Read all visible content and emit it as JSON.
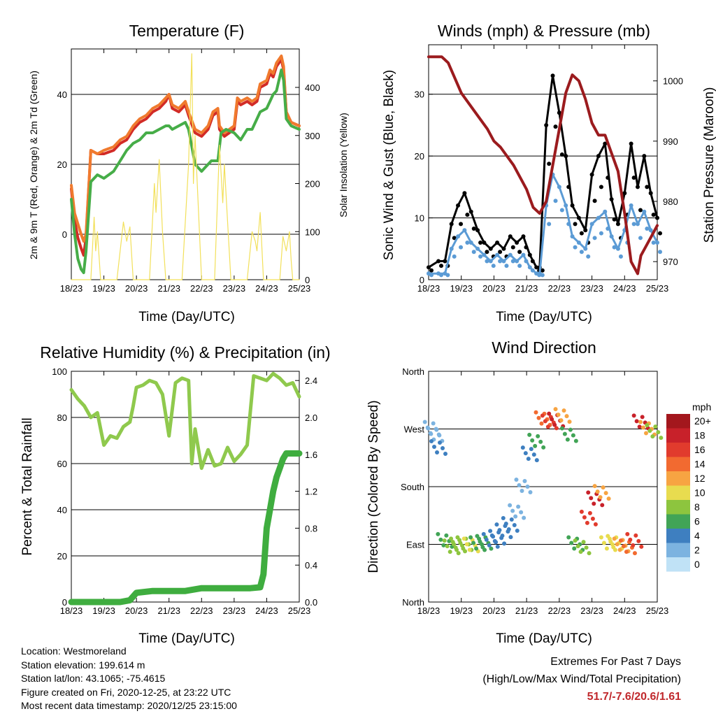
{
  "panels": {
    "temperature": {
      "title": "Temperature (F)",
      "ylabel_left": "2m & 9m T (Red, Orange) & 2m Td (Green)",
      "ylabel_right": "Solar Insolation (Yellow)",
      "xlabel": "Time (Day/UTC)"
    },
    "winds": {
      "title": "Winds (mph) & Pressure (mb)",
      "ylabel_left": "Sonic Wind & Gust (Blue, Black)",
      "ylabel_right": "Station Pressure (Maroon)",
      "xlabel": "Time (Day/UTC)"
    },
    "humidity": {
      "title": "Relative Humidity (%) & Precipitation (in)",
      "ylabel_left": "Percent & Total Rainfall",
      "xlabel": "Time (Day/UTC)"
    },
    "direction": {
      "title": "Wind Direction",
      "ylabel_left": "Direction (Colored By Speed)",
      "xlabel": "Time (Day/UTC)",
      "legend_title": "mph",
      "legend_labels": [
        "20+",
        "18",
        "16",
        "14",
        "12",
        "10",
        "8",
        "6",
        "4",
        "2",
        "0"
      ],
      "legend_colors": [
        "#a3171d",
        "#c8212a",
        "#e13b2d",
        "#f26a30",
        "#f7a442",
        "#e8dc4f",
        "#8dc53e",
        "#41a456",
        "#3e7fc0",
        "#7cb3e0",
        "#c0e2f6"
      ]
    }
  },
  "chart_data": [
    {
      "type": "line",
      "title": "Temperature (F)",
      "xlabel": "Time (Day/UTC)",
      "ylabel": "2m & 9m T (Red, Orange) & 2m Td (Green)",
      "y2label": "Solar Insolation (Yellow)",
      "x_ticks": [
        "18/23",
        "19/23",
        "20/23",
        "21/23",
        "22/23",
        "23/23",
        "24/23",
        "25/23"
      ],
      "x_range": [
        0,
        7
      ],
      "ylim": [
        -13,
        53
      ],
      "y_ticks": [
        0,
        20,
        40
      ],
      "y2lim": [
        0,
        480
      ],
      "y2_ticks": [
        0,
        100,
        200,
        300,
        400
      ],
      "grid": true,
      "series": [
        {
          "color": "#d22b26",
          "x": [
            0,
            0.1,
            0.2,
            0.3,
            0.38,
            0.45,
            0.6,
            0.8,
            1.0,
            1.3,
            1.5,
            1.7,
            1.9,
            2.1,
            2.3,
            2.5,
            2.7,
            2.9,
            3.0,
            3.1,
            3.3,
            3.5,
            3.6,
            3.8,
            4.0,
            4.2,
            4.35,
            4.5,
            4.55,
            4.7,
            5.0,
            5.1,
            5.2,
            5.4,
            5.55,
            5.7,
            5.75,
            5.8,
            6.0,
            6.1,
            6.2,
            6.3,
            6.45,
            6.52,
            6.6,
            6.75,
            7.0
          ],
          "values": [
            13,
            4,
            -1,
            -4,
            -6,
            -1,
            24,
            23,
            23,
            24,
            26,
            27,
            30,
            32,
            33,
            35,
            36,
            38,
            40,
            36,
            35,
            37,
            34,
            29,
            28,
            30,
            34,
            35,
            30,
            28,
            30,
            38,
            37,
            38,
            37,
            38,
            40,
            42,
            43,
            46,
            45,
            48,
            50,
            47,
            35,
            32,
            31
          ]
        },
        {
          "color": "#f07a2e",
          "x": [
            0,
            0.1,
            0.2,
            0.3,
            0.38,
            0.45,
            0.6,
            0.8,
            1.0,
            1.3,
            1.5,
            1.7,
            1.9,
            2.1,
            2.3,
            2.5,
            2.7,
            2.9,
            3.0,
            3.1,
            3.3,
            3.5,
            3.6,
            3.8,
            4.0,
            4.2,
            4.35,
            4.5,
            4.55,
            4.7,
            5.0,
            5.1,
            5.2,
            5.4,
            5.55,
            5.7,
            5.75,
            5.8,
            6.0,
            6.1,
            6.2,
            6.3,
            6.45,
            6.52,
            6.6,
            6.75,
            7.0
          ],
          "values": [
            14,
            6,
            3,
            0,
            -2,
            0,
            24,
            23,
            24,
            25,
            27,
            28,
            31,
            33,
            34,
            36,
            37,
            39,
            40,
            37,
            36,
            38,
            35,
            30,
            29,
            31,
            35,
            36,
            31,
            29,
            31,
            39,
            38,
            39,
            38,
            39,
            41,
            43,
            44,
            47,
            46,
            49,
            51,
            48,
            35,
            32,
            31
          ]
        },
        {
          "color": "#46ad48",
          "x": [
            0,
            0.1,
            0.2,
            0.3,
            0.38,
            0.45,
            0.6,
            0.8,
            1.0,
            1.3,
            1.5,
            1.7,
            1.9,
            2.1,
            2.3,
            2.5,
            2.7,
            2.9,
            3.0,
            3.1,
            3.3,
            3.5,
            3.6,
            3.8,
            4.0,
            4.1,
            4.3,
            4.5,
            4.6,
            4.75,
            5.0,
            5.2,
            5.4,
            5.55,
            5.7,
            5.8,
            6.0,
            6.1,
            6.2,
            6.3,
            6.45,
            6.52,
            6.6,
            6.75,
            7.0
          ],
          "values": [
            10,
            0,
            -7,
            -10,
            -11,
            -5,
            15,
            17,
            16,
            18,
            21,
            24,
            26,
            27,
            29,
            29,
            30,
            31,
            31,
            30,
            31,
            32,
            30,
            20,
            18,
            19,
            21,
            21,
            29,
            30,
            29,
            27,
            30,
            30,
            33,
            35,
            36,
            38,
            40,
            41,
            47,
            44,
            33,
            31,
            30
          ]
        },
        {
          "color": "#f2e05a",
          "axis": "y2",
          "x": [
            0,
            0.6,
            0.7,
            0.75,
            0.8,
            0.9,
            1.4,
            1.6,
            1.7,
            1.8,
            1.9,
            2.4,
            2.55,
            2.6,
            2.7,
            2.8,
            2.9,
            3.4,
            3.6,
            3.7,
            3.75,
            3.8,
            4.0,
            4.4,
            4.55,
            4.65,
            4.7,
            4.8,
            4.9,
            5.4,
            5.55,
            5.65,
            5.7,
            5.8,
            5.9,
            6.4,
            6.5,
            6.6,
            6.7,
            6.75,
            6.8,
            7.0
          ],
          "values": [
            0,
            0,
            130,
            60,
            100,
            0,
            0,
            120,
            80,
            110,
            0,
            0,
            200,
            140,
            250,
            100,
            0,
            0,
            240,
            470,
            200,
            300,
            0,
            0,
            280,
            160,
            240,
            120,
            0,
            0,
            100,
            80,
            60,
            140,
            0,
            0,
            90,
            60,
            100,
            40,
            0,
            0
          ]
        }
      ]
    },
    {
      "type": "scatter",
      "title": "Winds (mph) & Pressure (mb)",
      "xlabel": "Time (Day/UTC)",
      "ylabel": "Sonic Wind & Gust (Blue, Black)",
      "y2label": "Station Pressure (Maroon)",
      "x_ticks": [
        "18/23",
        "19/23",
        "20/23",
        "21/23",
        "22/23",
        "23/23",
        "24/23",
        "25/23"
      ],
      "x_range": [
        0,
        7
      ],
      "ylim": [
        0,
        38
      ],
      "y_ticks": [
        0,
        10,
        20,
        30
      ],
      "y2lim": [
        967,
        1006
      ],
      "y2_ticks": [
        970,
        980,
        990,
        1000
      ],
      "grid": true,
      "series": [
        {
          "name": "Gust",
          "color": "#000000",
          "x": [
            0,
            0.3,
            0.5,
            0.7,
            0.9,
            1.1,
            1.3,
            1.5,
            1.7,
            1.9,
            2.1,
            2.3,
            2.5,
            2.7,
            2.9,
            3.1,
            3.3,
            3.4,
            3.6,
            3.8,
            4.0,
            4.2,
            4.4,
            4.6,
            4.8,
            5.0,
            5.2,
            5.4,
            5.6,
            5.8,
            6.0,
            6.2,
            6.4,
            6.6,
            6.8,
            7.0
          ],
          "values": [
            2,
            3,
            3,
            9,
            12,
            14,
            11,
            8,
            6,
            5,
            6,
            5,
            7,
            6,
            7,
            4,
            2,
            2,
            25,
            33,
            27,
            20,
            12,
            10,
            8,
            17,
            20,
            22,
            13,
            9,
            14,
            22,
            15,
            20,
            14,
            10
          ]
        },
        {
          "name": "Wind",
          "color": "#5b9bd5",
          "x": [
            0,
            0.3,
            0.5,
            0.7,
            0.9,
            1.1,
            1.3,
            1.5,
            1.7,
            1.9,
            2.1,
            2.3,
            2.5,
            2.7,
            2.9,
            3.1,
            3.3,
            3.4,
            3.6,
            3.8,
            4.0,
            4.2,
            4.4,
            4.6,
            4.8,
            5.0,
            5.2,
            5.4,
            5.6,
            5.8,
            6.0,
            6.2,
            6.4,
            6.6,
            6.8,
            7.0
          ],
          "values": [
            1,
            1,
            1,
            5,
            7,
            8,
            6,
            5,
            4,
            3,
            4,
            3,
            4,
            3,
            4,
            2,
            1,
            1,
            12,
            17,
            15,
            12,
            7,
            6,
            5,
            9,
            10,
            11,
            7,
            5,
            8,
            12,
            9,
            11,
            8,
            6
          ]
        },
        {
          "name": "Pressure",
          "color": "#9b1b1e",
          "axis": "y2",
          "x": [
            0,
            0.4,
            0.6,
            1.0,
            1.4,
            1.8,
            2.0,
            2.2,
            2.6,
            3.0,
            3.2,
            3.4,
            3.6,
            3.8,
            4.0,
            4.2,
            4.4,
            4.6,
            4.8,
            5.0,
            5.2,
            5.4,
            5.6,
            5.8,
            6.0,
            6.1,
            6.2,
            6.4,
            6.5,
            6.6,
            6.8,
            7.0
          ],
          "values": [
            1004,
            1004,
            1003,
            998,
            995,
            992,
            990,
            989,
            986,
            982,
            979,
            978,
            980,
            986,
            992,
            998,
            1001,
            1000,
            997,
            993,
            991,
            991,
            988,
            985,
            978,
            974,
            970,
            968,
            971,
            972,
            974,
            976
          ]
        }
      ]
    },
    {
      "type": "line",
      "title": "Relative Humidity (%) & Precipitation (in)",
      "xlabel": "Time (Day/UTC)",
      "ylabel": "Percent & Total Rainfall",
      "x_ticks": [
        "18/23",
        "19/23",
        "20/23",
        "21/23",
        "22/23",
        "23/23",
        "24/23",
        "25/23"
      ],
      "x_range": [
        0,
        7
      ],
      "ylim": [
        0,
        100
      ],
      "y_ticks": [
        0,
        20,
        40,
        60,
        80,
        100
      ],
      "y2lim": [
        0,
        2.5
      ],
      "y2_ticks": [
        "0.0",
        "0.4",
        "0.8",
        "1.2",
        "1.6",
        "2.0",
        "2.4"
      ],
      "grid": true,
      "series": [
        {
          "name": "RH",
          "color": "#8fc94d",
          "x": [
            0,
            0.2,
            0.4,
            0.6,
            0.8,
            0.9,
            1.0,
            1.2,
            1.4,
            1.6,
            1.8,
            1.9,
            2.0,
            2.2,
            2.4,
            2.6,
            2.8,
            3.0,
            3.2,
            3.4,
            3.6,
            3.7,
            3.8,
            4.0,
            4.2,
            4.4,
            4.6,
            4.8,
            5.0,
            5.2,
            5.4,
            5.6,
            5.8,
            6.0,
            6.2,
            6.4,
            6.6,
            6.8,
            7.0
          ],
          "values": [
            92,
            88,
            85,
            80,
            82,
            75,
            68,
            72,
            71,
            76,
            78,
            85,
            93,
            94,
            96,
            95,
            90,
            72,
            95,
            97,
            96,
            60,
            75,
            58,
            66,
            59,
            60,
            67,
            61,
            64,
            68,
            98,
            97,
            96,
            99,
            97,
            94,
            95,
            89
          ]
        },
        {
          "name": "Precipitation",
          "color": "#3fad3f",
          "axis": "y2",
          "x": [
            0,
            0.5,
            1.0,
            1.5,
            1.8,
            2.0,
            2.5,
            3.0,
            3.5,
            4.0,
            4.5,
            5.0,
            5.5,
            5.8,
            5.9,
            6.0,
            6.1,
            6.2,
            6.3,
            6.4,
            6.5,
            6.6,
            7.0
          ],
          "values": [
            0,
            0,
            0,
            0,
            0.02,
            0.1,
            0.12,
            0.12,
            0.12,
            0.15,
            0.15,
            0.15,
            0.15,
            0.16,
            0.3,
            0.8,
            1.0,
            1.2,
            1.35,
            1.45,
            1.55,
            1.61,
            1.61
          ]
        }
      ]
    },
    {
      "type": "scatter",
      "title": "Wind Direction",
      "xlabel": "Time (Day/UTC)",
      "ylabel": "Direction (Colored By Speed)",
      "x_ticks": [
        "18/23",
        "19/23",
        "20/23",
        "21/23",
        "22/23",
        "23/23",
        "24/23",
        "25/23"
      ],
      "x_range": [
        0,
        7
      ],
      "y_ticks": [
        "North",
        "East",
        "South",
        "West",
        "North"
      ],
      "ylim": [
        0,
        360
      ],
      "color_scale": {
        "title": "mph",
        "labels": [
          "0",
          "2",
          "4",
          "6",
          "8",
          "10",
          "12",
          "14",
          "16",
          "18",
          "20+"
        ]
      },
      "series": [
        {
          "name": "Direction",
          "x": [
            0.1,
            0.2,
            0.3,
            0.5,
            0.7,
            0.9,
            1.1,
            1.3,
            1.5,
            1.7,
            1.9,
            2.1,
            2.3,
            2.5,
            2.7,
            2.9,
            3.1,
            3.3,
            3.5,
            3.7,
            3.9,
            4.1,
            4.3,
            4.5,
            4.7,
            4.9,
            5.1,
            5.3,
            5.5,
            5.7,
            5.9,
            6.1,
            6.3,
            6.5,
            6.7,
            6.9
          ],
          "values": [
            270,
            260,
            240,
            95,
            85,
            88,
            90,
            88,
            90,
            92,
            95,
            100,
            110,
            120,
            140,
            180,
            230,
            250,
            285,
            280,
            283,
            290,
            260,
            90,
            85,
            130,
            160,
            170,
            90,
            92,
            88,
            85,
            95,
            280,
            270,
            265
          ],
          "speed": [
            1,
            2,
            3,
            5,
            7,
            8,
            7,
            9,
            6,
            5,
            4,
            3,
            3,
            4,
            2,
            2,
            3,
            5,
            14,
            16,
            18,
            12,
            6,
            6,
            8,
            15,
            17,
            12,
            10,
            9,
            11,
            14,
            16,
            18,
            12,
            7
          ]
        }
      ]
    }
  ],
  "info": {
    "location": "Location: Westmoreland",
    "elevation": "Station elevation: 199.614 m",
    "latlon": "Station lat/lon: 43.1065; -75.4615",
    "created": "Figure created on Fri, 2020-12-25, at 23:22 UTC",
    "recent": "Most recent data timestamp: 2020/12/25 23:15:00"
  },
  "extremes": {
    "title": "Extremes For Past 7 Days",
    "subtitle": "(High/Low/Max Wind/Total Precipitation)",
    "values": "51.7/-7.6/20.6/1.61"
  }
}
